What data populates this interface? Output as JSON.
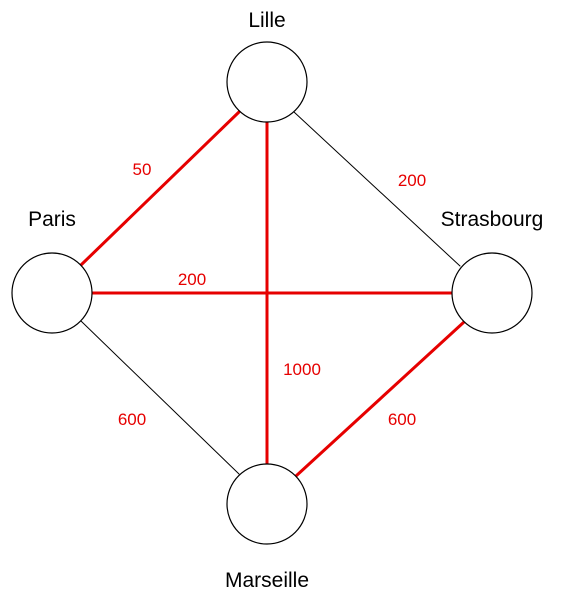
{
  "colors": {
    "highlight": "#e60000",
    "normal": "#000000"
  },
  "nodes": [
    {
      "id": "lille",
      "label": "Lille"
    },
    {
      "id": "paris",
      "label": "Paris"
    },
    {
      "id": "strasbourg",
      "label": "Strasbourg"
    },
    {
      "id": "marseille",
      "label": "Marseille"
    }
  ],
  "edges": [
    {
      "id": "lille-paris",
      "from": "Lille",
      "to": "Paris",
      "weight": "50",
      "highlighted": true
    },
    {
      "id": "lille-strasbourg",
      "from": "Lille",
      "to": "Strasbourg",
      "weight": "200",
      "highlighted": false
    },
    {
      "id": "lille-marseille",
      "from": "Lille",
      "to": "Marseille",
      "weight": "1000",
      "highlighted": true
    },
    {
      "id": "paris-strasbourg",
      "from": "Paris",
      "to": "Strasbourg",
      "weight": "200",
      "highlighted": true
    },
    {
      "id": "paris-marseille",
      "from": "Paris",
      "to": "Marseille",
      "weight": "600",
      "highlighted": false
    },
    {
      "id": "strasbourg-marseille",
      "from": "Strasbourg",
      "to": "Marseille",
      "weight": "600",
      "highlighted": true
    }
  ]
}
